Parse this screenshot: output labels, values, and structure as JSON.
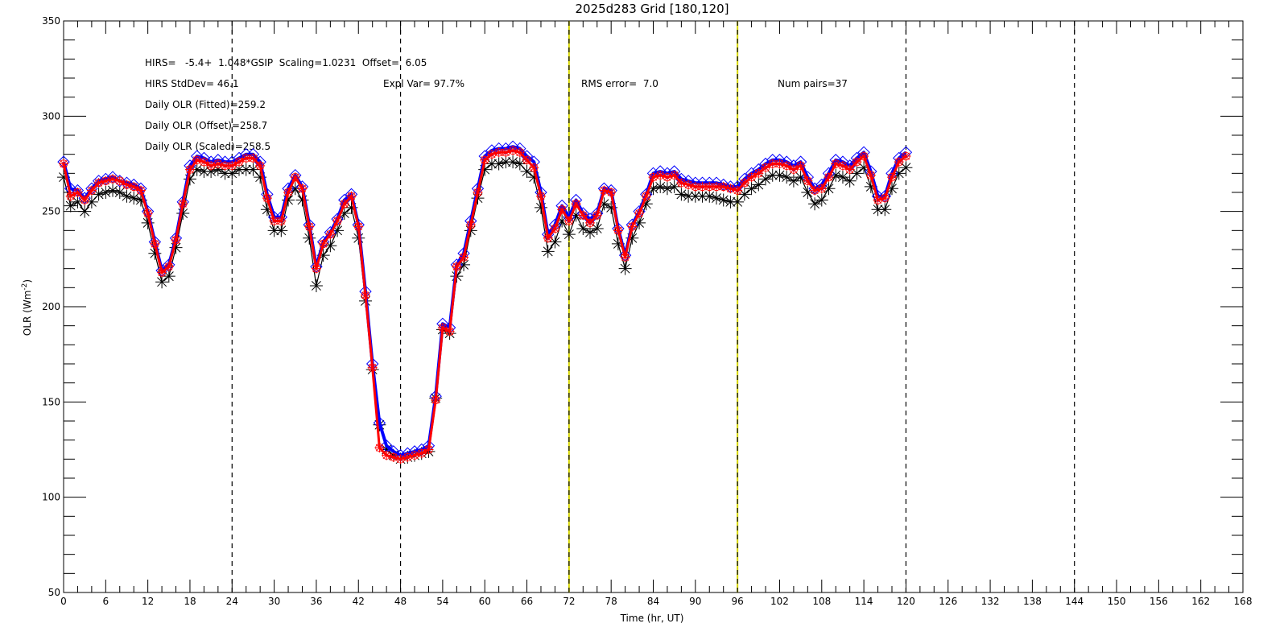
{
  "chart_data": {
    "type": "line",
    "title": "2025d283 Grid [180,120]",
    "xlabel": "Time (hr, UT)",
    "ylabel": "OLR (Wm",
    "ylabel_sup": "-2",
    "ylabel_close": ")",
    "xlim": [
      0,
      168
    ],
    "ylim": [
      50,
      350
    ],
    "xticks": [
      "0",
      "6",
      "12",
      "18",
      "24",
      "30",
      "36",
      "42",
      "48",
      "54",
      "60",
      "66",
      "72",
      "78",
      "84",
      "90",
      "96",
      "102",
      "108",
      "114",
      "120",
      "126",
      "132",
      "138",
      "144",
      "150",
      "156",
      "162",
      "168"
    ],
    "yticks": [
      "50",
      "100",
      "150",
      "200",
      "250",
      "300",
      "350"
    ],
    "grid": false,
    "day_lines": {
      "black": [
        24,
        48,
        120,
        144
      ],
      "yellow": [
        72,
        96
      ]
    },
    "annotations": [
      {
        "text": "HIRS=   -5.4+  1.048*GSIP  Scaling=1.0231  Offset=  6.05"
      },
      {
        "text": "HIRS StdDev= 46.1"
      },
      {
        "text": "Expl Var= 97.7%"
      },
      {
        "text": "RMS error=  7.0"
      },
      {
        "text": "Num pairs=37"
      },
      {
        "text": "Daily OLR (Fitted)=259.2"
      },
      {
        "text": "Daily OLR (Offset)=258.7"
      },
      {
        "text": "Daily OLR (Scaled)=258.5"
      }
    ],
    "x": [
      0,
      1,
      2,
      3,
      4,
      5,
      6,
      7,
      8,
      9,
      10,
      11,
      12,
      13,
      14,
      15,
      16,
      17,
      18,
      19,
      20,
      21,
      22,
      23,
      24,
      25,
      26,
      27,
      28,
      29,
      30,
      31,
      32,
      33,
      34,
      35,
      36,
      37,
      38,
      39,
      40,
      41,
      42,
      43,
      44,
      45,
      46,
      47,
      48,
      49,
      50,
      51,
      52,
      53,
      54,
      55,
      56,
      57,
      58,
      59,
      60,
      61,
      62,
      63,
      64,
      65,
      66,
      67,
      68,
      69,
      70,
      71,
      72,
      73,
      74,
      75,
      76,
      77,
      78,
      79,
      80,
      81,
      82,
      83,
      84,
      85,
      86,
      87,
      88,
      89,
      90,
      91,
      92,
      93,
      94,
      95,
      96,
      97,
      98,
      99,
      100,
      101,
      102,
      103,
      104,
      105,
      106,
      107,
      108,
      109,
      110,
      111,
      112,
      113,
      114,
      115,
      116,
      117,
      118,
      119,
      120
    ],
    "series": [
      {
        "color": "#0000ff",
        "marker": "diamond",
        "values": [
          276,
          262,
          261,
          257,
          262,
          266,
          267,
          268,
          266,
          265,
          264,
          262,
          250,
          234,
          219,
          222,
          236,
          255,
          274,
          279,
          278,
          276,
          277,
          276,
          276,
          278,
          280,
          280,
          276,
          259,
          247,
          247,
          262,
          269,
          263,
          243,
          221,
          234,
          239,
          246,
          256,
          259,
          243,
          208,
          170,
          139,
          127,
          124,
          122,
          123,
          124,
          125,
          127,
          153,
          191,
          189,
          222,
          228,
          245,
          262,
          279,
          282,
          283,
          283,
          284,
          283,
          279,
          276,
          260,
          238,
          243,
          253,
          247,
          256,
          249,
          246,
          249,
          262,
          261,
          241,
          227,
          243,
          250,
          259,
          270,
          271,
          270,
          271,
          267,
          266,
          265,
          265,
          265,
          265,
          264,
          263,
          263,
          267,
          270,
          272,
          275,
          277,
          277,
          276,
          274,
          276,
          268,
          262,
          264,
          270,
          277,
          276,
          274,
          278,
          281,
          271,
          258,
          258,
          270,
          278,
          281
        ]
      },
      {
        "color": "#ff0000",
        "marker": "star",
        "values": [
          275,
          258,
          260,
          256,
          261,
          265,
          266,
          267,
          266,
          264,
          263,
          261,
          249,
          233,
          218,
          221,
          235,
          254,
          272,
          277,
          276,
          274,
          275,
          274,
          274,
          276,
          278,
          278,
          274,
          257,
          245,
          245,
          260,
          268,
          262,
          242,
          220,
          233,
          238,
          245,
          254,
          258,
          242,
          206,
          168,
          126,
          122,
          121,
          120,
          121,
          122,
          123,
          125,
          151,
          189,
          187,
          221,
          226,
          243,
          260,
          277,
          280,
          281,
          281,
          282,
          281,
          277,
          273,
          258,
          236,
          241,
          251,
          245,
          254,
          248,
          244,
          248,
          261,
          260,
          240,
          226,
          242,
          249,
          258,
          268,
          269,
          268,
          269,
          265,
          264,
          263,
          263,
          263,
          263,
          263,
          262,
          261,
          265,
          268,
          270,
          273,
          275,
          275,
          274,
          272,
          274,
          266,
          261,
          262,
          268,
          275,
          274,
          272,
          276,
          279,
          269,
          256,
          257,
          268,
          276,
          279
        ]
      },
      {
        "color": "#000000",
        "marker": "asterisk",
        "values": [
          268,
          253,
          255,
          250,
          255,
          259,
          260,
          261,
          260,
          258,
          257,
          256,
          244,
          228,
          213,
          216,
          231,
          249,
          267,
          272,
          271,
          271,
          272,
          270,
          270,
          272,
          272,
          272,
          268,
          251,
          240,
          240,
          256,
          262,
          256,
          236,
          211,
          227,
          232,
          240,
          249,
          252,
          236,
          203,
          167,
          138,
          125,
          122,
          120,
          121,
          122,
          123,
          124,
          152,
          188,
          186,
          216,
          222,
          240,
          257,
          272,
          275,
          275,
          276,
          276,
          275,
          271,
          268,
          252,
          229,
          234,
          245,
          238,
          248,
          241,
          239,
          241,
          254,
          252,
          233,
          220,
          236,
          244,
          254,
          262,
          263,
          262,
          263,
          259,
          258,
          258,
          258,
          258,
          257,
          256,
          255,
          255,
          259,
          262,
          264,
          267,
          269,
          269,
          268,
          266,
          268,
          260,
          254,
          256,
          262,
          269,
          268,
          266,
          270,
          273,
          263,
          251,
          251,
          262,
          270,
          273
        ]
      }
    ]
  }
}
